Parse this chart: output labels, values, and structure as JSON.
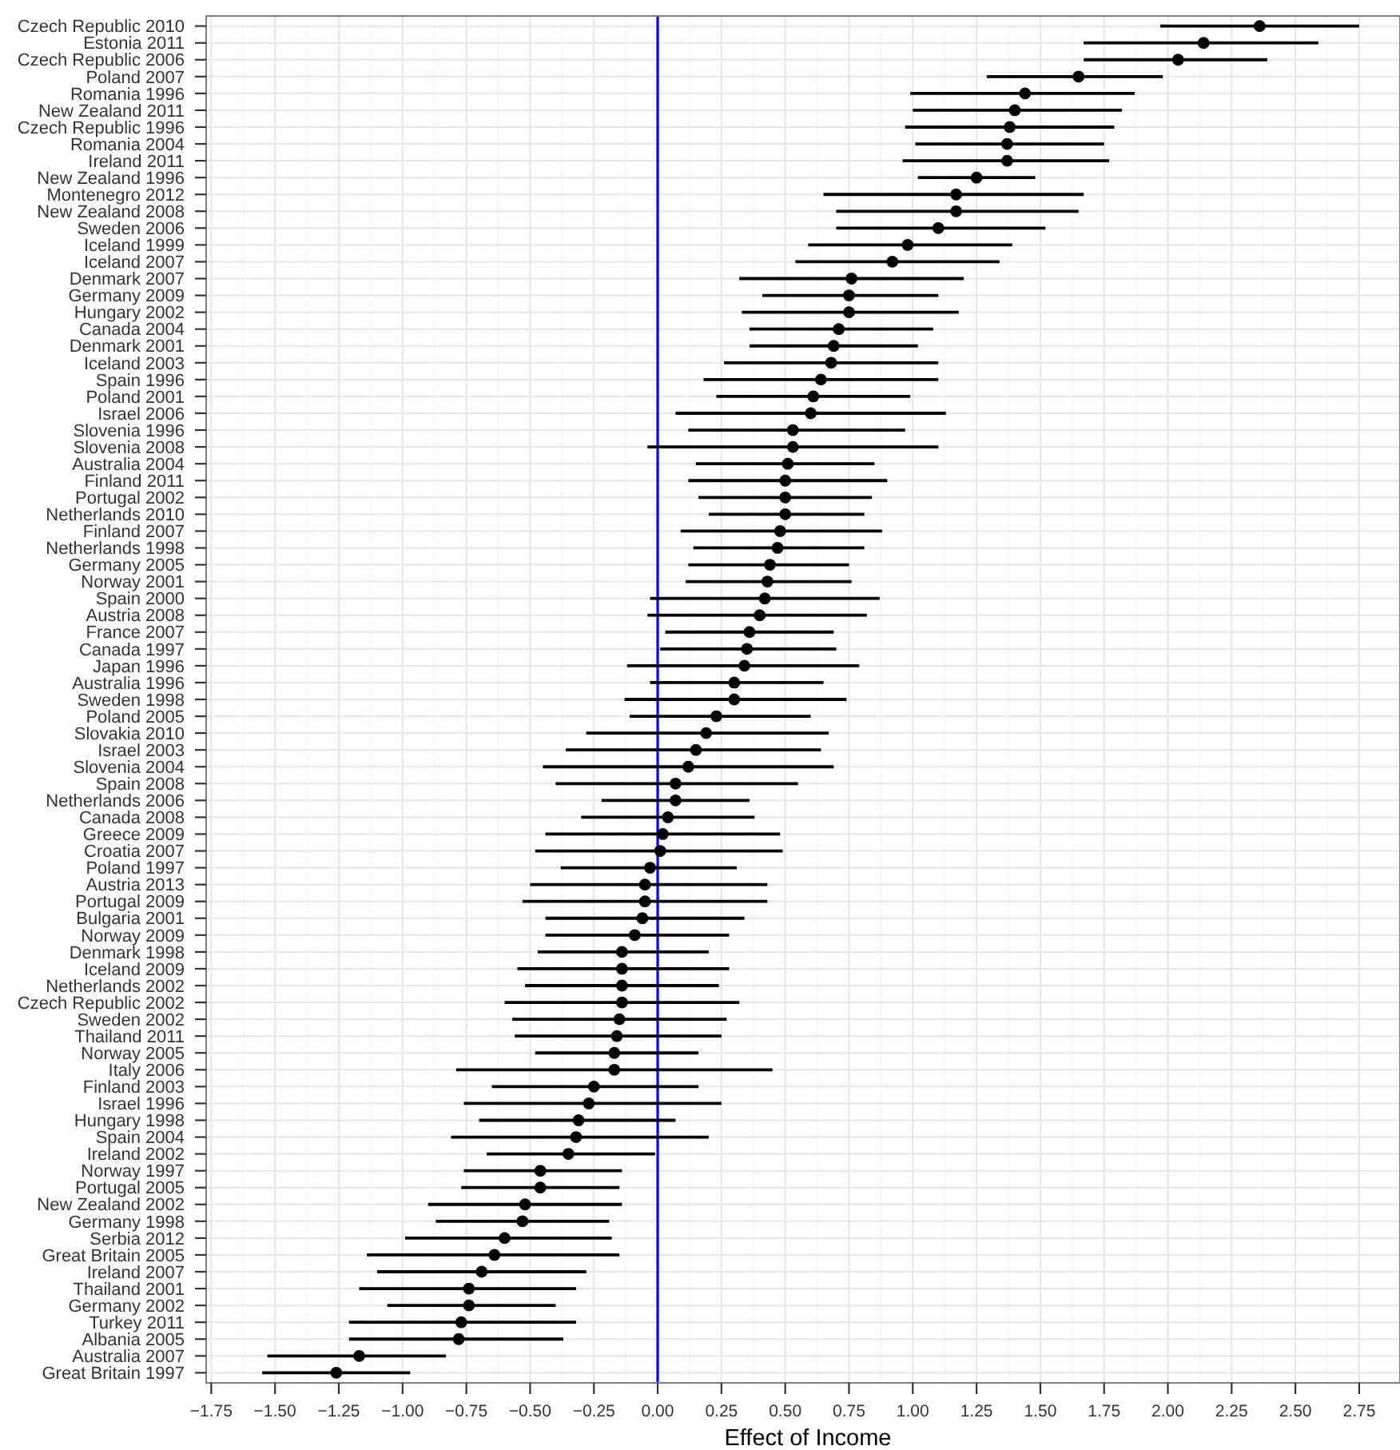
{
  "chart_data": {
    "type": "scatter",
    "orientation": "horizontal",
    "xlabel": "Effect of Income",
    "color": "#000000",
    "marker": "circle",
    "grid": true,
    "categories": [
      "Czech Republic 2010",
      "Estonia 2011",
      "Czech Republic 2006",
      "Poland 2007",
      "Romania 1996",
      "New Zealand 2011",
      "Czech Republic 1996",
      "Romania 2004",
      "Ireland 2011",
      "New Zealand 1996",
      "Montenegro 2012",
      "New Zealand 2008",
      "Sweden 2006",
      "Iceland 1999",
      "Iceland 2007",
      "Denmark 2007",
      "Germany 2009",
      "Hungary 2002",
      "Canada 2004",
      "Denmark 2001",
      "Iceland 2003",
      "Spain 1996",
      "Poland 2001",
      "Israel 2006",
      "Slovenia 1996",
      "Slovenia 2008",
      "Australia 2004",
      "Finland 2011",
      "Portugal 2002",
      "Netherlands 2010",
      "Finland 2007",
      "Netherlands 1998",
      "Germany 2005",
      "Norway 2001",
      "Spain 2000",
      "Austria 2008",
      "France 2007",
      "Canada 1997",
      "Japan 1996",
      "Australia 1996",
      "Sweden 1998",
      "Poland 2005",
      "Slovakia 2010",
      "Israel 2003",
      "Slovenia 2004",
      "Spain 2008",
      "Netherlands 2006",
      "Canada 2008",
      "Greece 2009",
      "Croatia 2007",
      "Poland 1997",
      "Austria 2013",
      "Portugal 2009",
      "Bulgaria 2001",
      "Norway 2009",
      "Denmark 1998",
      "Iceland 2009",
      "Netherlands 2002",
      "Czech Republic 2002",
      "Sweden 2002",
      "Thailand 2011",
      "Norway 2005",
      "Italy 2006",
      "Finland 2003",
      "Israel 1996",
      "Hungary 1998",
      "Spain 2004",
      "Ireland 2002",
      "Norway 1997",
      "Portugal 2005",
      "New Zealand 2002",
      "Germany 1998",
      "Serbia 2012",
      "Great Britain 2005",
      "Ireland 2007",
      "Thailand 2001",
      "Germany 2002",
      "Turkey 2011",
      "Albania 2005",
      "Australia 2007",
      "Great Britain 1997"
    ],
    "values": [
      2.36,
      2.14,
      2.04,
      1.65,
      1.44,
      1.4,
      1.38,
      1.37,
      1.37,
      1.25,
      1.17,
      1.17,
      1.1,
      0.98,
      0.92,
      0.76,
      0.75,
      0.75,
      0.71,
      0.69,
      0.68,
      0.64,
      0.61,
      0.6,
      0.53,
      0.53,
      0.51,
      0.5,
      0.5,
      0.5,
      0.48,
      0.47,
      0.44,
      0.43,
      0.42,
      0.4,
      0.36,
      0.35,
      0.34,
      0.3,
      0.3,
      0.23,
      0.19,
      0.15,
      0.12,
      0.07,
      0.07,
      0.04,
      0.02,
      0.01,
      -0.03,
      -0.05,
      -0.05,
      -0.06,
      -0.09,
      -0.14,
      -0.14,
      -0.14,
      -0.14,
      -0.15,
      -0.16,
      -0.17,
      -0.17,
      -0.25,
      -0.27,
      -0.31,
      -0.32,
      -0.35,
      -0.46,
      -0.46,
      -0.52,
      -0.53,
      -0.6,
      -0.64,
      -0.69,
      -0.74,
      -0.74,
      -0.77,
      -0.78,
      -1.17,
      -1.26
    ],
    "errors": [
      [
        1.97,
        2.75
      ],
      [
        1.67,
        2.59
      ],
      [
        1.67,
        2.39
      ],
      [
        1.29,
        1.98
      ],
      [
        0.99,
        1.87
      ],
      [
        1.0,
        1.82
      ],
      [
        0.97,
        1.79
      ],
      [
        1.01,
        1.75
      ],
      [
        0.96,
        1.77
      ],
      [
        1.02,
        1.48
      ],
      [
        0.65,
        1.67
      ],
      [
        0.7,
        1.65
      ],
      [
        0.7,
        1.52
      ],
      [
        0.59,
        1.39
      ],
      [
        0.54,
        1.34
      ],
      [
        0.32,
        1.2
      ],
      [
        0.41,
        1.1
      ],
      [
        0.33,
        1.18
      ],
      [
        0.36,
        1.08
      ],
      [
        0.36,
        1.02
      ],
      [
        0.26,
        1.1
      ],
      [
        0.18,
        1.1
      ],
      [
        0.23,
        0.99
      ],
      [
        0.07,
        1.13
      ],
      [
        0.12,
        0.97
      ],
      [
        -0.04,
        1.1
      ],
      [
        0.15,
        0.85
      ],
      [
        0.12,
        0.9
      ],
      [
        0.16,
        0.84
      ],
      [
        0.2,
        0.81
      ],
      [
        0.09,
        0.88
      ],
      [
        0.14,
        0.81
      ],
      [
        0.12,
        0.75
      ],
      [
        0.11,
        0.76
      ],
      [
        -0.03,
        0.87
      ],
      [
        -0.04,
        0.82
      ],
      [
        0.03,
        0.69
      ],
      [
        0.01,
        0.7
      ],
      [
        -0.12,
        0.79
      ],
      [
        -0.03,
        0.65
      ],
      [
        -0.13,
        0.74
      ],
      [
        -0.11,
        0.6
      ],
      [
        -0.28,
        0.67
      ],
      [
        -0.36,
        0.64
      ],
      [
        -0.45,
        0.69
      ],
      [
        -0.4,
        0.55
      ],
      [
        -0.22,
        0.36
      ],
      [
        -0.3,
        0.38
      ],
      [
        -0.44,
        0.48
      ],
      [
        -0.48,
        0.49
      ],
      [
        -0.38,
        0.31
      ],
      [
        -0.5,
        0.43
      ],
      [
        -0.53,
        0.43
      ],
      [
        -0.44,
        0.34
      ],
      [
        -0.44,
        0.28
      ],
      [
        -0.47,
        0.2
      ],
      [
        -0.55,
        0.28
      ],
      [
        -0.52,
        0.24
      ],
      [
        -0.6,
        0.32
      ],
      [
        -0.57,
        0.27
      ],
      [
        -0.56,
        0.25
      ],
      [
        -0.48,
        0.16
      ],
      [
        -0.79,
        0.45
      ],
      [
        -0.65,
        0.16
      ],
      [
        -0.76,
        0.25
      ],
      [
        -0.7,
        0.07
      ],
      [
        -0.81,
        0.2
      ],
      [
        -0.67,
        -0.01
      ],
      [
        -0.76,
        -0.14
      ],
      [
        -0.77,
        -0.15
      ],
      [
        -0.9,
        -0.14
      ],
      [
        -0.87,
        -0.19
      ],
      [
        -0.99,
        -0.18
      ],
      [
        -1.14,
        -0.15
      ],
      [
        -1.1,
        -0.28
      ],
      [
        -1.17,
        -0.32
      ],
      [
        -1.06,
        -0.4
      ],
      [
        -1.21,
        -0.32
      ],
      [
        -1.21,
        -0.37
      ],
      [
        -1.53,
        -0.83
      ],
      [
        -1.55,
        -0.97
      ]
    ],
    "xlim": [
      -1.77,
      2.91
    ],
    "xticks": [
      {
        "value": -1.75,
        "label": "−1.75"
      },
      {
        "value": -1.5,
        "label": "−1.50"
      },
      {
        "value": -1.25,
        "label": "−1.25"
      },
      {
        "value": -1,
        "label": "−1.00"
      },
      {
        "value": -0.75,
        "label": "−0.75"
      },
      {
        "value": -0.5,
        "label": "−0.50"
      },
      {
        "value": -0.25,
        "label": "−0.25"
      },
      {
        "value": 0,
        "label": "0.00"
      },
      {
        "value": 0.25,
        "label": "0.25"
      },
      {
        "value": 0.5,
        "label": "0.50"
      },
      {
        "value": 0.75,
        "label": "0.75"
      },
      {
        "value": 1,
        "label": "1.00"
      },
      {
        "value": 1.25,
        "label": "1.25"
      },
      {
        "value": 1.5,
        "label": "1.50"
      },
      {
        "value": 1.75,
        "label": "1.75"
      },
      {
        "value": 2,
        "label": "2.00"
      },
      {
        "value": 2.25,
        "label": "2.25"
      },
      {
        "value": 2.5,
        "label": "2.50"
      },
      {
        "value": 2.75,
        "label": "2.75"
      }
    ],
    "ref_lines": [
      {
        "axis": "x",
        "value": 0,
        "color": "#0000ff"
      }
    ]
  }
}
